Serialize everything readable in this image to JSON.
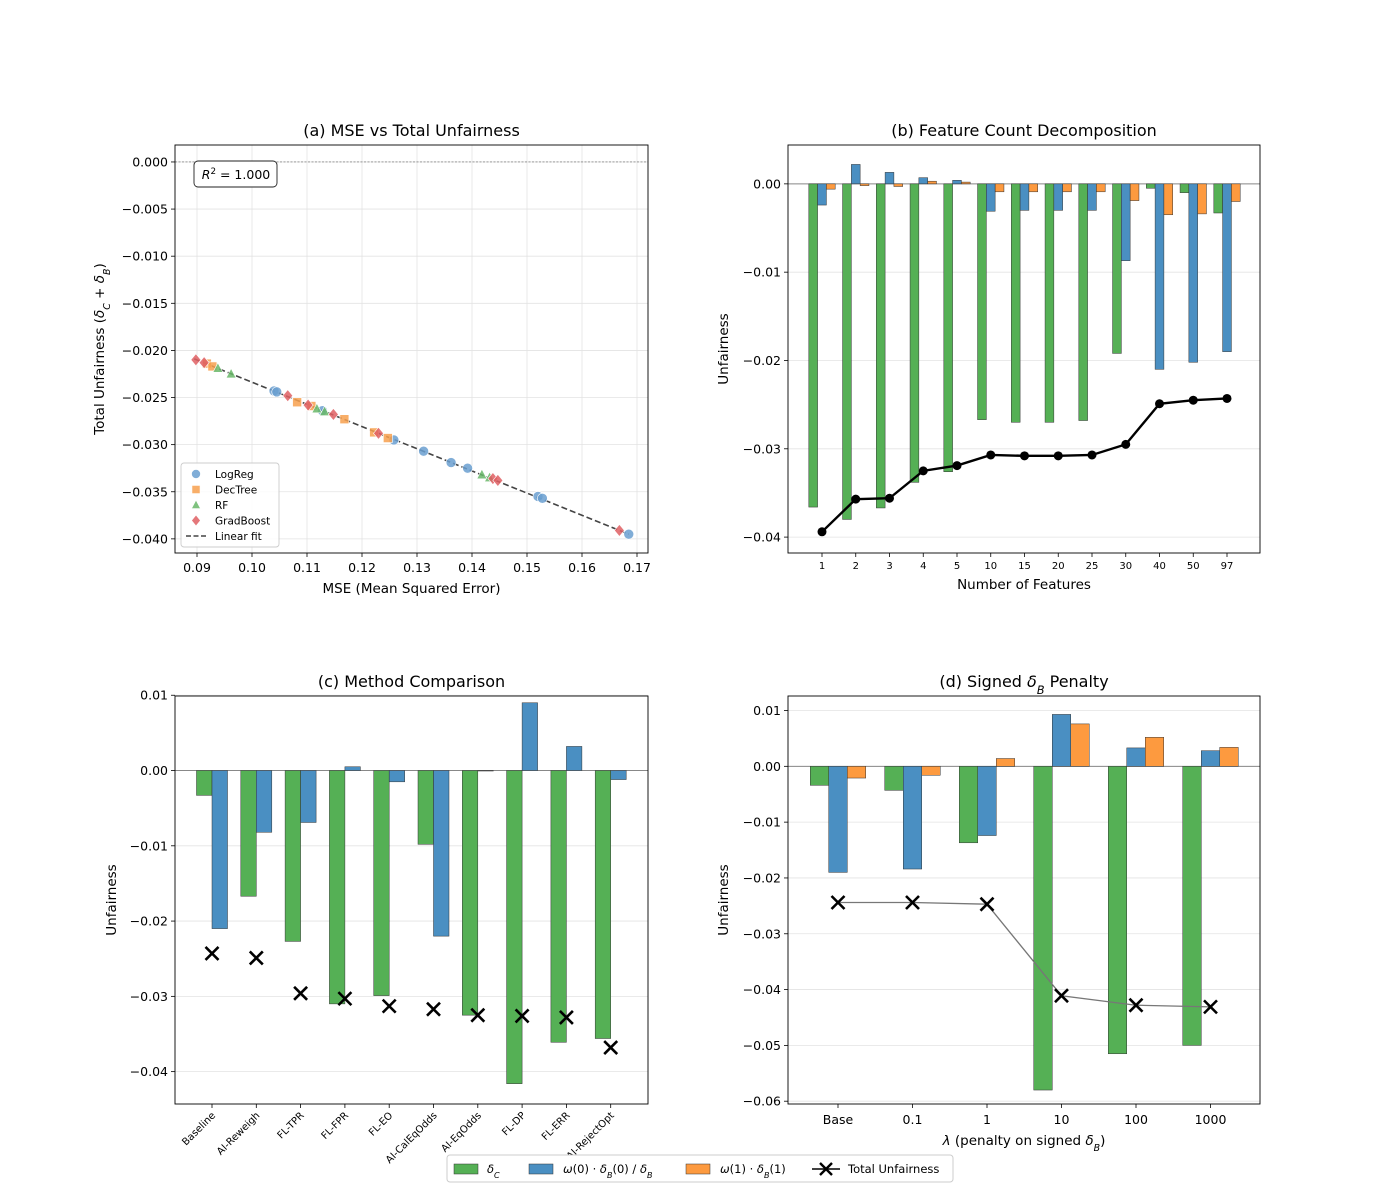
{
  "colors": {
    "delta_c": "#55b055",
    "omega0": "#4a8fc2",
    "omega1": "#fd9a3f",
    "total": "#000000",
    "logreg": "#6a9fd0",
    "dectree": "#f7a04d",
    "rf": "#69b769",
    "gradboost": "#df5f63"
  },
  "chart_data": [
    {
      "id": "a",
      "type": "scatter",
      "title": "(a) MSE vs Total Unfairness",
      "xlabel": "MSE (Mean Squared Error)",
      "ylabel_parts": [
        "Total Unfairness (",
        "δ",
        "C",
        " + ",
        "δ",
        "B",
        ")"
      ],
      "xlim": [
        0.086,
        0.172
      ],
      "ylim": [
        -0.0415,
        0.0018
      ],
      "xticks": [
        0.09,
        0.1,
        0.11,
        0.12,
        0.13,
        0.14,
        0.15,
        0.16,
        0.17
      ],
      "yticks": [
        0.0,
        -0.005,
        -0.01,
        -0.015,
        -0.02,
        -0.025,
        -0.03,
        -0.035,
        -0.04
      ],
      "annotation_parts": [
        "R",
        "2",
        " = 1.000"
      ],
      "fit": {
        "x": [
          0.0895,
          0.1685
        ],
        "y": [
          -0.0209,
          -0.0395
        ],
        "label": "Linear fit"
      },
      "series": [
        {
          "name": "LogReg",
          "marker": "circle",
          "color_key": "logreg",
          "x": [
            0.104,
            0.1045,
            0.1128,
            0.1258,
            0.1312,
            0.1362,
            0.1392,
            0.152,
            0.1528,
            0.1685
          ],
          "y": [
            -0.0243,
            -0.0244,
            -0.0264,
            -0.0295,
            -0.0307,
            -0.0319,
            -0.0325,
            -0.0355,
            -0.0357,
            -0.0395
          ]
        },
        {
          "name": "DecTree",
          "marker": "square",
          "color_key": "dectree",
          "x": [
            0.0918,
            0.0928,
            0.1082,
            0.1108,
            0.1168,
            0.1222,
            0.1247
          ],
          "y": [
            -0.0214,
            -0.0217,
            -0.0255,
            -0.0259,
            -0.0273,
            -0.0287,
            -0.0293
          ]
        },
        {
          "name": "RF",
          "marker": "triangle",
          "color_key": "rf",
          "x": [
            0.0938,
            0.0962,
            0.1118,
            0.1132,
            0.1418,
            0.1432
          ],
          "y": [
            -0.0219,
            -0.0225,
            -0.0262,
            -0.0265,
            -0.0332,
            -0.0335
          ]
        },
        {
          "name": "GradBoost",
          "marker": "diamond",
          "color_key": "gradboost",
          "x": [
            0.0898,
            0.0913,
            0.1065,
            0.1102,
            0.1148,
            0.123,
            0.1438,
            0.1447,
            0.1668
          ],
          "y": [
            -0.021,
            -0.0213,
            -0.0248,
            -0.0258,
            -0.0268,
            -0.0288,
            -0.0336,
            -0.0338,
            -0.0391
          ]
        }
      ]
    },
    {
      "id": "b",
      "type": "bar",
      "title": "(b) Feature Count Decomposition",
      "xlabel": "Number of Features",
      "ylabel": "Unfairness",
      "ylim": [
        -0.0418,
        0.0044
      ],
      "yticks": [
        0.0,
        -0.01,
        -0.02,
        -0.03,
        -0.04
      ],
      "categories": [
        "1",
        "2",
        "3",
        "4",
        "5",
        "10",
        "15",
        "20",
        "25",
        "30",
        "40",
        "50",
        "97"
      ],
      "series": [
        {
          "key": "delta_c",
          "values": [
            -0.0366,
            -0.038,
            -0.0367,
            -0.0338,
            -0.0326,
            -0.0267,
            -0.027,
            -0.027,
            -0.0268,
            -0.0192,
            -0.0005,
            -0.001,
            -0.0033
          ]
        },
        {
          "key": "omega0",
          "values": [
            -0.0024,
            0.0022,
            0.0013,
            0.0007,
            0.0004,
            -0.0031,
            -0.003,
            -0.003,
            -0.003,
            -0.0087,
            -0.021,
            -0.0202,
            -0.019
          ]
        },
        {
          "key": "omega1",
          "values": [
            -0.0006,
            -0.0002,
            -0.0003,
            0.0003,
            0.0002,
            -0.0009,
            -0.0009,
            -0.0009,
            -0.0009,
            -0.0019,
            -0.0035,
            -0.0034,
            -0.002
          ]
        }
      ],
      "total": [
        -0.0394,
        -0.0357,
        -0.0356,
        -0.0325,
        -0.0319,
        -0.0307,
        -0.0308,
        -0.0308,
        -0.0307,
        -0.0295,
        -0.0249,
        -0.0245,
        -0.0243
      ]
    },
    {
      "id": "c",
      "type": "bar",
      "title": "(c) Method Comparison",
      "ylabel": "Unfairness",
      "ylim": [
        -0.0443,
        0.0099
      ],
      "yticks": [
        0.01,
        0.0,
        -0.01,
        -0.02,
        -0.03,
        -0.04
      ],
      "categories": [
        "Baseline",
        "AI-Reweigh",
        "FL-TPR",
        "FL-FPR",
        "FL-EO",
        "AI-CalEqOdds",
        "AI-EqOdds",
        "FL-DP",
        "FL-ERR",
        "AI-RejectOpt"
      ],
      "series": [
        {
          "key": "delta_c",
          "values": [
            -0.0033,
            -0.0167,
            -0.0227,
            -0.031,
            -0.0299,
            -0.0098,
            -0.0325,
            -0.0416,
            -0.0361,
            -0.0356
          ]
        },
        {
          "key": "omega0",
          "values": [
            -0.021,
            -0.0082,
            -0.0069,
            0.0005,
            -0.0015,
            -0.022,
            0.0,
            0.009,
            0.0032,
            -0.0012
          ]
        }
      ],
      "total": [
        -0.0243,
        -0.0249,
        -0.0296,
        -0.0303,
        -0.0313,
        -0.0317,
        -0.0325,
        -0.0326,
        -0.0328,
        -0.0368
      ]
    },
    {
      "id": "d",
      "type": "bar",
      "title_parts": [
        "(d) Signed ",
        "δ",
        "B",
        " Penalty"
      ],
      "xlabel_parts": [
        "λ",
        " (penalty on signed ",
        "δ",
        "B",
        ")"
      ],
      "ylabel": "Unfairness",
      "ylim": [
        -0.0605,
        0.0126
      ],
      "yticks": [
        0.01,
        0.0,
        -0.01,
        -0.02,
        -0.03,
        -0.04,
        -0.05,
        -0.06
      ],
      "categories": [
        "Base",
        "0.1",
        "1",
        "10",
        "100",
        "1000"
      ],
      "series": [
        {
          "key": "delta_c",
          "values": [
            -0.0034,
            -0.0043,
            -0.0137,
            -0.058,
            -0.0515,
            -0.05
          ]
        },
        {
          "key": "omega0",
          "values": [
            -0.019,
            -0.0184,
            -0.0124,
            0.0093,
            0.0033,
            0.0028
          ]
        },
        {
          "key": "omega1",
          "values": [
            -0.0021,
            -0.0016,
            0.0014,
            0.0076,
            0.0052,
            0.0034
          ]
        }
      ],
      "total": [
        -0.0244,
        -0.0244,
        -0.0247,
        -0.0411,
        -0.0428,
        -0.0431
      ]
    }
  ],
  "legend_a": {
    "logreg": "LogReg",
    "dectree": "DecTree",
    "rf": "RF",
    "gradboost": "GradBoost",
    "fit": "Linear fit"
  },
  "figure_legend": {
    "delta_c": [
      "δ",
      "C"
    ],
    "omega0": [
      "ω",
      "(0) · ",
      "δ",
      "B",
      "(0) / ",
      "δ",
      "B"
    ],
    "omega1": [
      "ω",
      "(1) · ",
      "δ",
      "B",
      "(1)"
    ],
    "total": "Total Unfairness"
  }
}
